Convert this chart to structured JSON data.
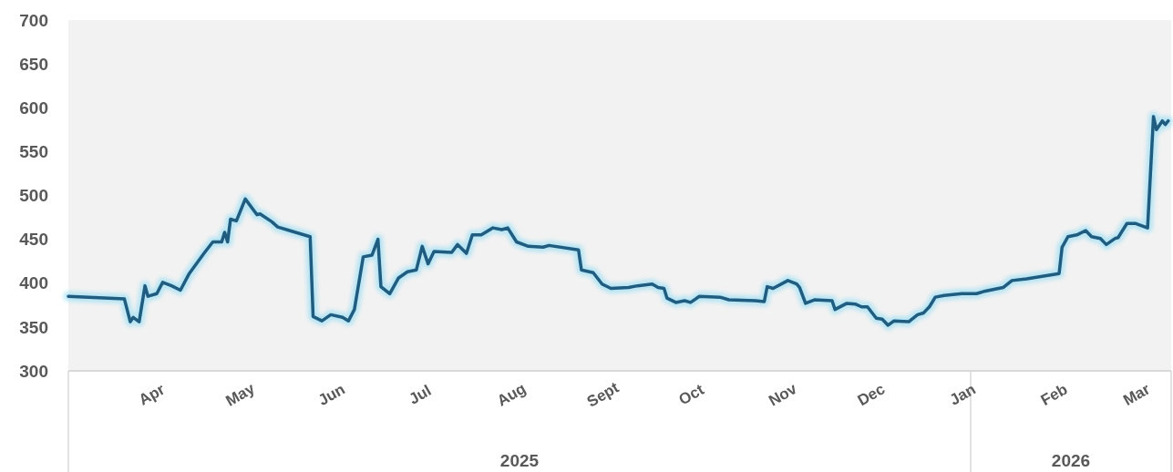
{
  "chart_data": {
    "type": "line",
    "x": [
      "2025-03-01",
      "2025-03-20",
      "2025-03-22",
      "2025-03-23",
      "2025-03-25",
      "2025-03-27",
      "2025-03-28",
      "2025-03-31",
      "2025-04-02",
      "2025-04-05",
      "2025-04-08",
      "2025-04-11",
      "2025-04-16",
      "2025-04-19",
      "2025-04-22",
      "2025-04-23",
      "2025-04-24",
      "2025-04-25",
      "2025-04-27",
      "2025-04-30",
      "2025-05-04",
      "2025-05-05",
      "2025-05-09",
      "2025-05-11",
      "2025-05-15",
      "2025-05-22",
      "2025-05-23",
      "2025-05-26",
      "2025-05-29",
      "2025-06-02",
      "2025-06-04",
      "2025-06-06",
      "2025-06-09",
      "2025-06-12",
      "2025-06-14",
      "2025-06-15",
      "2025-06-18",
      "2025-06-21",
      "2025-06-24",
      "2025-06-27",
      "2025-06-29",
      "2025-07-01",
      "2025-07-03",
      "2025-07-09",
      "2025-07-11",
      "2025-07-14",
      "2025-07-16",
      "2025-07-19",
      "2025-07-23",
      "2025-07-26",
      "2025-07-28",
      "2025-07-31",
      "2025-08-04",
      "2025-08-09",
      "2025-08-11",
      "2025-08-21",
      "2025-08-22",
      "2025-08-26",
      "2025-08-29",
      "2025-09-01",
      "2025-09-07",
      "2025-09-10",
      "2025-09-15",
      "2025-09-17",
      "2025-09-19",
      "2025-09-20",
      "2025-09-23",
      "2025-09-26",
      "2025-09-28",
      "2025-10-01",
      "2025-10-08",
      "2025-10-11",
      "2025-10-20",
      "2025-10-23",
      "2025-10-24",
      "2025-10-26",
      "2025-10-31",
      "2025-11-03",
      "2025-11-04",
      "2025-11-06",
      "2025-11-09",
      "2025-11-15",
      "2025-11-16",
      "2025-11-20",
      "2025-11-23",
      "2025-11-25",
      "2025-11-27",
      "2025-11-30",
      "2025-12-02",
      "2025-12-04",
      "2025-12-06",
      "2025-12-11",
      "2025-12-14",
      "2025-12-16",
      "2025-12-18",
      "2025-12-20",
      "2025-12-23",
      "2025-12-29",
      "2026-01-03",
      "2026-01-06",
      "2026-01-12",
      "2026-01-15",
      "2026-01-20",
      "2026-01-31",
      "2026-02-01",
      "2026-02-03",
      "2026-02-06",
      "2026-02-09",
      "2026-02-11",
      "2026-02-14",
      "2026-02-16",
      "2026-02-19",
      "2026-02-20",
      "2026-02-23",
      "2026-02-26",
      "2026-03-02",
      "2026-03-04",
      "2026-03-05",
      "2026-03-07",
      "2026-03-08",
      "2026-03-09"
    ],
    "series": [
      {
        "color": "#1f5c7f",
        "values": [
          385,
          382,
          356,
          361,
          356,
          397,
          385,
          388,
          401,
          397,
          392,
          411,
          434,
          447,
          447,
          458,
          447,
          473,
          471,
          496,
          478,
          479,
          470,
          464,
          460,
          453,
          362,
          357,
          364,
          361,
          357,
          370,
          430,
          432,
          450,
          396,
          388,
          406,
          413,
          415,
          442,
          422,
          436,
          435,
          444,
          434,
          455,
          455,
          463,
          461,
          463,
          447,
          442,
          441,
          443,
          438,
          415,
          412,
          399,
          394,
          395,
          397,
          399,
          395,
          394,
          383,
          378,
          380,
          378,
          385,
          384,
          381,
          380,
          379,
          396,
          394,
          403,
          399,
          395,
          377,
          381,
          380,
          370,
          377,
          376,
          373,
          373,
          360,
          359,
          352,
          357,
          356,
          364,
          366,
          373,
          384,
          386,
          388,
          388,
          391,
          395,
          403,
          405,
          411,
          441,
          453,
          455,
          460,
          453,
          451,
          444,
          451,
          452,
          468,
          468,
          463,
          590,
          575,
          585,
          581,
          585
        ]
      }
    ],
    "ylim": [
      300,
      700
    ],
    "yticks": [
      300,
      350,
      400,
      450,
      500,
      550,
      600,
      650,
      700
    ],
    "xlim": [
      "2025-03-01",
      "2026-03-10"
    ],
    "xticks": [
      {
        "value": "2025-04-01",
        "label": "Apr"
      },
      {
        "value": "2025-05-01",
        "label": "May"
      },
      {
        "value": "2025-06-01",
        "label": "Jun"
      },
      {
        "value": "2025-07-01",
        "label": "Jul"
      },
      {
        "value": "2025-08-01",
        "label": "Aug"
      },
      {
        "value": "2025-09-01",
        "label": "Sept"
      },
      {
        "value": "2025-10-01",
        "label": "Oct"
      },
      {
        "value": "2025-11-01",
        "label": "Nov"
      },
      {
        "value": "2025-12-01",
        "label": "Dec"
      },
      {
        "value": "2026-01-01",
        "label": "Jan"
      },
      {
        "value": "2026-02-01",
        "label": "Feb"
      },
      {
        "value": "2026-03-01",
        "label": "Mar"
      }
    ],
    "annotations": [
      "2025",
      "2026"
    ],
    "grid": false,
    "marker": "none",
    "line_style": "solid"
  }
}
